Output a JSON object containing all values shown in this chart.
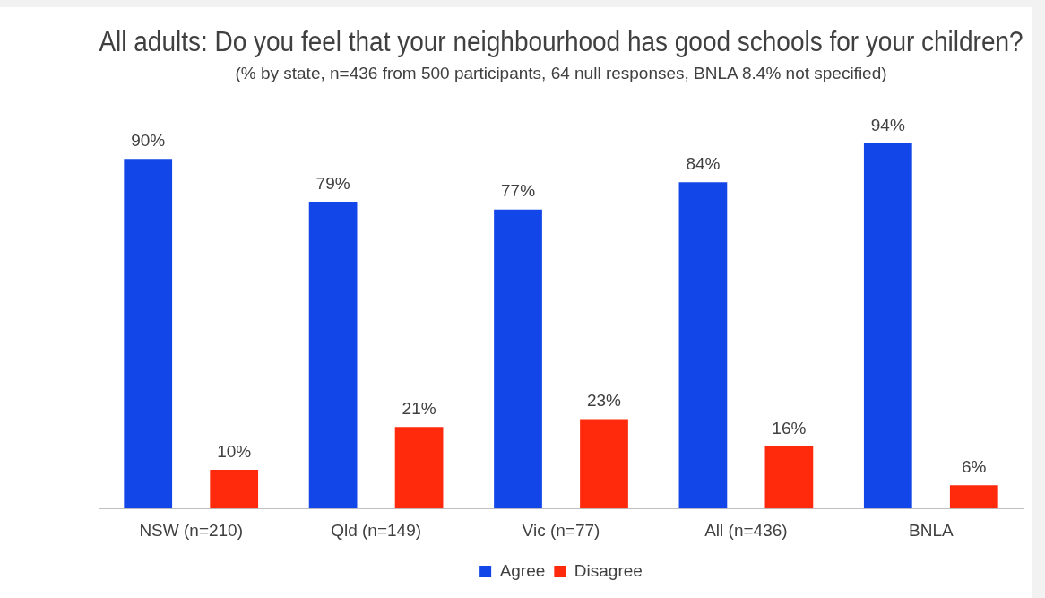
{
  "chart_data": {
    "type": "bar",
    "title": "All adults: Do you feel that your neighbourhood has good schools for your children?",
    "subtitle": "(% by state, n=436 from 500 participants, 64 null responses, BNLA 8.4% not specified)",
    "categories": [
      "NSW (n=210)",
      "Qld (n=149)",
      "Vic (n=77)",
      "All (n=436)",
      "BNLA"
    ],
    "series": [
      {
        "name": "Agree",
        "color": "#1346e8",
        "values": [
          90,
          79,
          77,
          84,
          94
        ],
        "value_labels": [
          "90%",
          "79%",
          "77%",
          "84%",
          "94%"
        ]
      },
      {
        "name": "Disagree",
        "color": "#ff2a0c",
        "values": [
          10,
          21,
          23,
          16,
          6
        ],
        "value_labels": [
          "10%",
          "21%",
          "23%",
          "16%",
          "6%"
        ]
      }
    ],
    "legend": "bottom",
    "grid": false,
    "tick_labels": "x"
  }
}
